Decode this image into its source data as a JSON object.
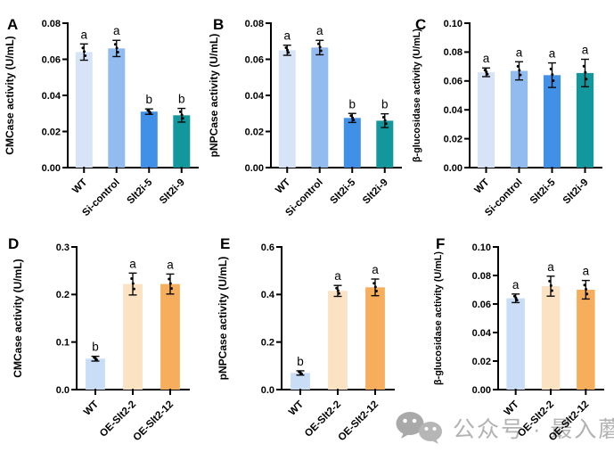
{
  "watermark": {
    "icon": "wechat-icon",
    "text": "公众号 · 最入蘑道"
  },
  "chart_data": [
    {
      "panel_label": "A",
      "type": "bar",
      "ylabel": "CMCase activity (U/mL)",
      "categories": [
        "WT",
        "Si-control",
        "Slt2i-5",
        "Slt2i-9"
      ],
      "values": [
        0.064,
        0.066,
        0.031,
        0.029
      ],
      "errors": [
        0.0045,
        0.0045,
        0.0015,
        0.0038
      ],
      "sig_letters": [
        "a",
        "a",
        "b",
        "b"
      ],
      "bar_colors": [
        "#d7e4f8",
        "#92bcf0",
        "#4190e7",
        "#12979c"
      ],
      "ylim": [
        0,
        0.08
      ],
      "ytick_labels": [
        "0.00",
        "0.02",
        "0.04",
        "0.06",
        "0.08"
      ],
      "grid": false,
      "legend": null
    },
    {
      "panel_label": "B",
      "type": "bar",
      "ylabel": "pNPCase activity (U/mL)",
      "categories": [
        "WT",
        "Si-control",
        "Slt2i-5",
        "Slt2i-9"
      ],
      "values": [
        0.065,
        0.0665,
        0.0275,
        0.026
      ],
      "errors": [
        0.0028,
        0.004,
        0.0025,
        0.0038
      ],
      "sig_letters": [
        "a",
        "a",
        "b",
        "b"
      ],
      "bar_colors": [
        "#d7e4f8",
        "#92bcf0",
        "#4190e7",
        "#12979c"
      ],
      "ylim": [
        0,
        0.08
      ],
      "ytick_labels": [
        "0.00",
        "0.02",
        "0.04",
        "0.06",
        "0.08"
      ],
      "grid": false,
      "legend": null
    },
    {
      "panel_label": "C",
      "type": "bar",
      "ylabel": "β-glucosidase activity (U/mL)",
      "categories": [
        "WT",
        "Si-control",
        "Slt2i-5",
        "Slt2i-9"
      ],
      "values": [
        0.066,
        0.067,
        0.064,
        0.0655
      ],
      "errors": [
        0.003,
        0.0063,
        0.0085,
        0.0095
      ],
      "sig_letters": [
        "a",
        "a",
        "a",
        "a"
      ],
      "bar_colors": [
        "#d7e4f8",
        "#92bcf0",
        "#4190e7",
        "#12979c"
      ],
      "ylim": [
        0,
        0.1
      ],
      "ytick_labels": [
        "0.00",
        "0.02",
        "0.04",
        "0.06",
        "0.08",
        "0.10"
      ],
      "grid": false,
      "legend": null
    },
    {
      "panel_label": "D",
      "type": "bar",
      "ylabel": "CMCase activity (U/mL)",
      "categories": [
        "WT",
        "OE-Slt2-2",
        "OE-Slt2-12"
      ],
      "values": [
        0.065,
        0.222,
        0.222
      ],
      "errors": [
        0.005,
        0.023,
        0.021
      ],
      "sig_letters": [
        "b",
        "a",
        "a"
      ],
      "bar_colors": [
        "#c9ddf6",
        "#fbe2c2",
        "#f6ae5c"
      ],
      "ylim": [
        0,
        0.3
      ],
      "ytick_labels": [
        "0.0",
        "0.1",
        "0.2",
        "0.3"
      ],
      "grid": false,
      "legend": null
    },
    {
      "panel_label": "E",
      "type": "bar",
      "ylabel": "pNPCase activity (U/mL)",
      "categories": [
        "WT",
        "OE-Slt2-2",
        "OE-Slt2-12"
      ],
      "values": [
        0.07,
        0.415,
        0.43
      ],
      "errors": [
        0.009,
        0.023,
        0.035
      ],
      "sig_letters": [
        "b",
        "a",
        "a"
      ],
      "bar_colors": [
        "#c9ddf6",
        "#fbe2c2",
        "#f6ae5c"
      ],
      "ylim": [
        0,
        0.6
      ],
      "ytick_labels": [
        "0.0",
        "0.2",
        "0.4",
        "0.6"
      ],
      "grid": false,
      "legend": null
    },
    {
      "panel_label": "F",
      "type": "bar",
      "ylabel": "β-glucosidase activity (U/mL)",
      "categories": [
        "WT",
        "OE-Slt2-2",
        "OE-Slt2-12"
      ],
      "values": [
        0.064,
        0.0725,
        0.07
      ],
      "errors": [
        0.003,
        0.007,
        0.0065
      ],
      "sig_letters": [
        "a",
        "a",
        "a"
      ],
      "bar_colors": [
        "#c9ddf6",
        "#fbe2c2",
        "#f6ae5c"
      ],
      "ylim": [
        0,
        0.1
      ],
      "ytick_labels": [
        "0.00",
        "0.02",
        "0.04",
        "0.06",
        "0.08",
        "0.10"
      ],
      "grid": false,
      "legend": null
    }
  ]
}
